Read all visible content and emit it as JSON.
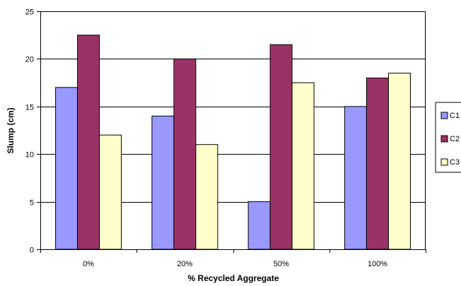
{
  "chart_data": {
    "type": "bar",
    "title": "",
    "xlabel": "% Recycled Aggregate",
    "ylabel": "Slump (cm)",
    "categories": [
      "0%",
      "20%",
      "50%",
      "100%"
    ],
    "ylim": [
      0,
      25
    ],
    "yticks": [
      0,
      5,
      10,
      15,
      20,
      25
    ],
    "grid": "horizontal",
    "legend_position": "right",
    "series": [
      {
        "name": "C1",
        "color": "#9999ff",
        "values": [
          17,
          14,
          5,
          15
        ]
      },
      {
        "name": "C2",
        "color": "#993366",
        "values": [
          22.5,
          20,
          21.5,
          18
        ]
      },
      {
        "name": "C3",
        "color": "#ffffcc",
        "values": [
          12,
          11,
          17.5,
          18.5
        ]
      }
    ]
  }
}
